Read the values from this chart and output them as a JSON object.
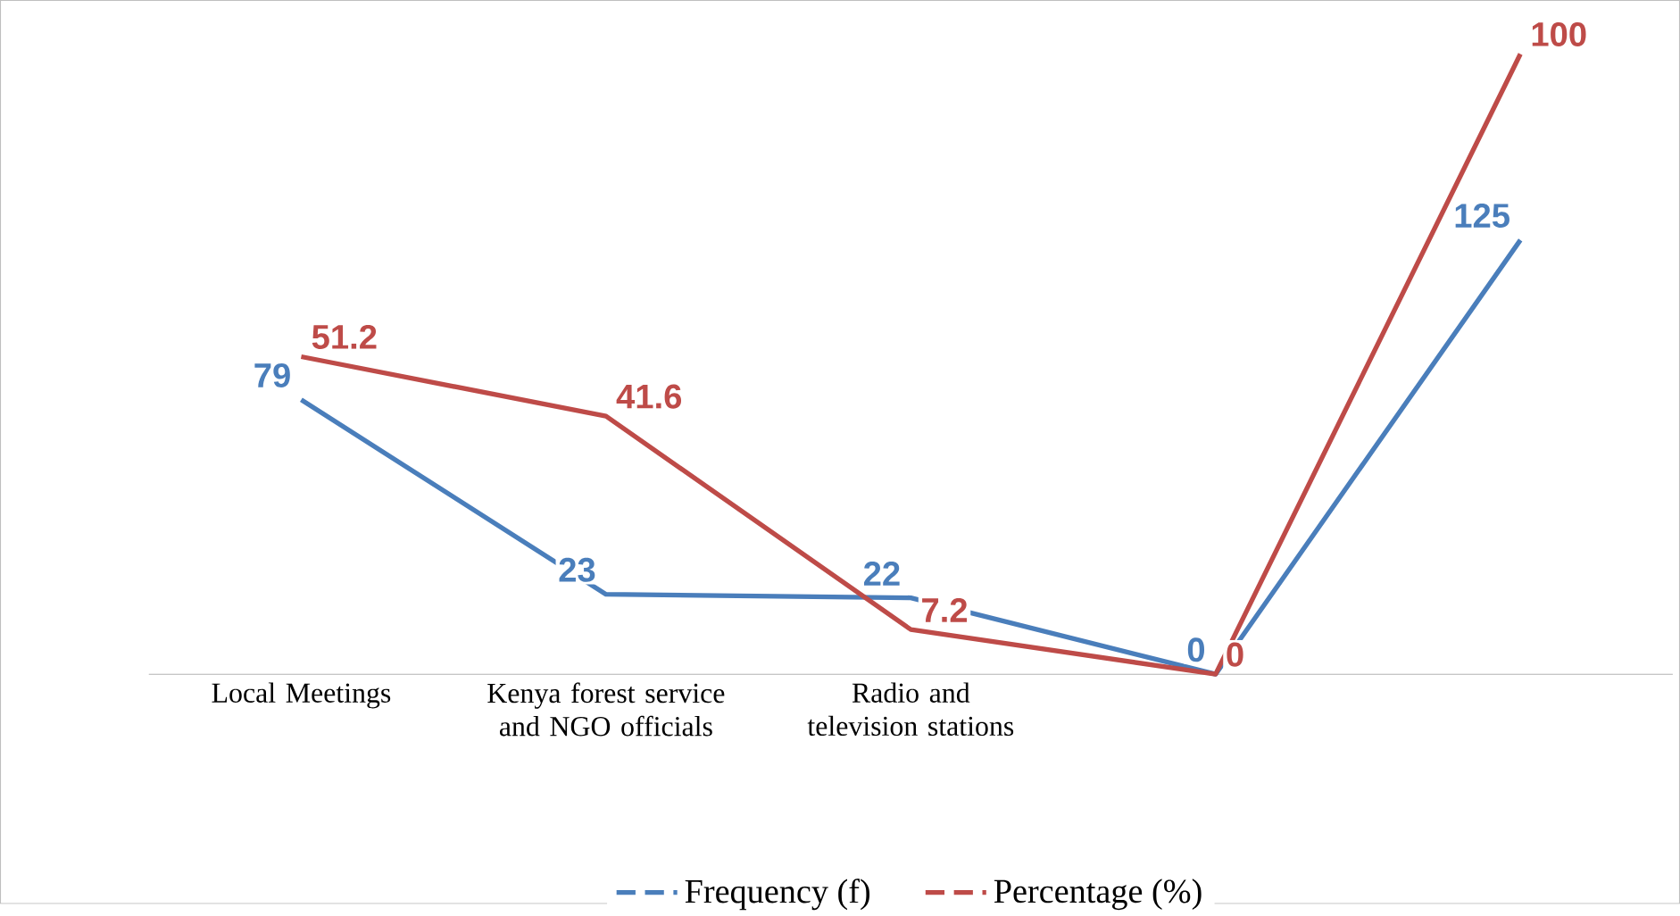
{
  "chart_data": {
    "type": "line",
    "categories": [
      "Local Meetings",
      "Kenya forest service and NGO officials",
      "Radio and television stations",
      null,
      null
    ],
    "series": [
      {
        "name": "Frequency (f)",
        "color": "#4a7ebb",
        "values": [
          79,
          23,
          22,
          0,
          125
        ]
      },
      {
        "name": "Percentage (%)",
        "color": "#be4b48",
        "values": [
          51.2,
          41.6,
          7.2,
          0,
          100
        ],
        "axis": "y2"
      }
    ],
    "data_labels": true,
    "legend": "bottom",
    "marker": "none",
    "line_style": "solid",
    "grid": false
  }
}
